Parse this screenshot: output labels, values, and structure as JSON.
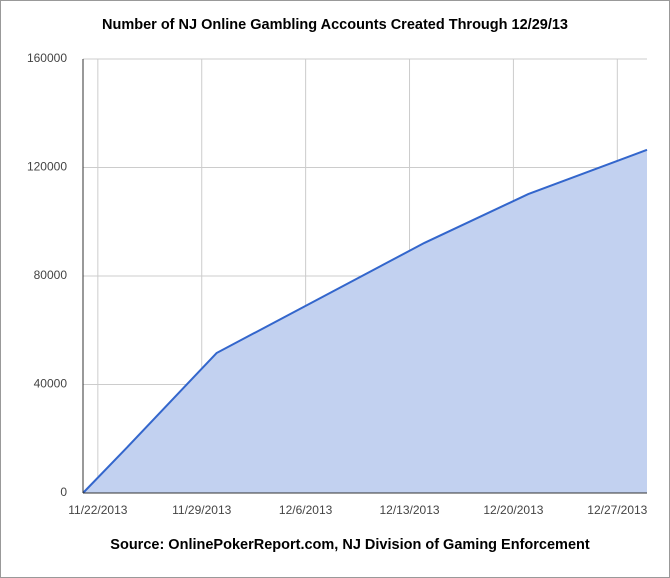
{
  "chart_data": {
    "type": "area",
    "title": "Number of NJ Online Gambling Accounts Created Through 12/29/13",
    "source": "Source: OnlinePokerReport.com, NJ Division of Gaming Enforcement",
    "x": [
      "2013-11-21",
      "2013-11-24",
      "2013-11-30",
      "2013-12-14",
      "2013-12-21",
      "2013-12-29"
    ],
    "values": [
      0,
      17000,
      51600,
      92200,
      110200,
      126500
    ],
    "color": "#3366cc",
    "fill": "#c2d1f0",
    "xlim": [
      "2013-11-21",
      "2013-12-29"
    ],
    "xticks": [
      {
        "value": "2013-11-22",
        "label": "11/22/2013"
      },
      {
        "value": "2013-11-29",
        "label": "11/29/2013"
      },
      {
        "value": "2013-12-06",
        "label": "12/6/2013"
      },
      {
        "value": "2013-12-13",
        "label": "12/13/2013"
      },
      {
        "value": "2013-12-20",
        "label": "12/20/2013"
      },
      {
        "value": "2013-12-27",
        "label": "12/27/2013"
      }
    ],
    "ylim": [
      0,
      160000
    ],
    "yticks": [
      0,
      40000,
      80000,
      120000,
      160000
    ],
    "grid": true
  }
}
